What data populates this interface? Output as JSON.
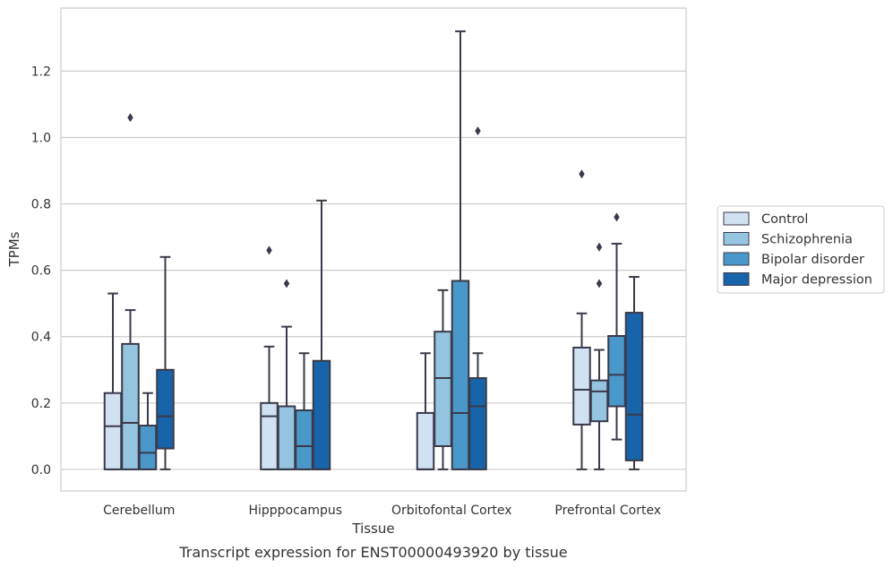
{
  "caption": "Transcript expression for ENST00000493920 by tissue",
  "chart_data": {
    "type": "box",
    "xlabel": "Tissue",
    "ylabel": "TPMs",
    "ylim": [
      -0.065,
      1.39
    ],
    "yticks": [
      0.0,
      0.2,
      0.4,
      0.6,
      0.8,
      1.0,
      1.2
    ],
    "ytick_labels": [
      "0.0",
      "0.2",
      "0.4",
      "0.6",
      "0.8",
      "1.0",
      "1.2"
    ],
    "grid": "horizontal",
    "legend_position": "right",
    "categories": [
      "Cerebellum",
      "Hipppocampus",
      "Orbitofontal Cortex",
      "Prefrontal Cortex"
    ],
    "series": [
      {
        "name": "Control",
        "color": "#d0e1f2",
        "boxes": [
          {
            "whislo": 0.0,
            "q1": 0.0,
            "med": 0.13,
            "q3": 0.23,
            "whishi": 0.53,
            "fliers": []
          },
          {
            "whislo": 0.0,
            "q1": 0.0,
            "med": 0.16,
            "q3": 0.2,
            "whishi": 0.37,
            "fliers": [
              0.66
            ]
          },
          {
            "whislo": 0.0,
            "q1": 0.0,
            "med": 0.0,
            "q3": 0.17,
            "whishi": 0.35,
            "fliers": []
          },
          {
            "whislo": 0.0,
            "q1": 0.135,
            "med": 0.24,
            "q3": 0.367,
            "whishi": 0.47,
            "fliers": [
              0.89
            ]
          }
        ]
      },
      {
        "name": "Schizophrenia",
        "color": "#94c4df",
        "boxes": [
          {
            "whislo": 0.0,
            "q1": 0.0,
            "med": 0.14,
            "q3": 0.378,
            "whishi": 0.48,
            "fliers": [
              1.06
            ]
          },
          {
            "whislo": 0.0,
            "q1": 0.0,
            "med": 0.0,
            "q3": 0.19,
            "whishi": 0.43,
            "fliers": [
              0.56
            ]
          },
          {
            "whislo": 0.0,
            "q1": 0.07,
            "med": 0.275,
            "q3": 0.415,
            "whishi": 0.54,
            "fliers": []
          },
          {
            "whislo": 0.0,
            "q1": 0.145,
            "med": 0.235,
            "q3": 0.268,
            "whishi": 0.36,
            "fliers": [
              0.56,
              0.67
            ]
          }
        ]
      },
      {
        "name": "Bipolar disorder",
        "color": "#4a98c9",
        "boxes": [
          {
            "whislo": 0.0,
            "q1": 0.0,
            "med": 0.05,
            "q3": 0.132,
            "whishi": 0.23,
            "fliers": []
          },
          {
            "whislo": 0.0,
            "q1": 0.0,
            "med": 0.07,
            "q3": 0.178,
            "whishi": 0.35,
            "fliers": []
          },
          {
            "whislo": 0.0,
            "q1": 0.0,
            "med": 0.17,
            "q3": 0.568,
            "whishi": 1.32,
            "fliers": []
          },
          {
            "whislo": 0.09,
            "q1": 0.19,
            "med": 0.285,
            "q3": 0.402,
            "whishi": 0.68,
            "fliers": [
              0.76
            ]
          }
        ]
      },
      {
        "name": "Major depression",
        "color": "#1764ab",
        "boxes": [
          {
            "whislo": 0.0,
            "q1": 0.063,
            "med": 0.16,
            "q3": 0.3,
            "whishi": 0.64,
            "fliers": []
          },
          {
            "whislo": 0.0,
            "q1": 0.0,
            "med": 0.0,
            "q3": 0.327,
            "whishi": 0.81,
            "fliers": []
          },
          {
            "whislo": 0.0,
            "q1": 0.0,
            "med": 0.19,
            "q3": 0.275,
            "whishi": 0.35,
            "fliers": [
              1.02
            ]
          },
          {
            "whislo": 0.0,
            "q1": 0.027,
            "med": 0.165,
            "q3": 0.472,
            "whishi": 0.58,
            "fliers": []
          }
        ]
      }
    ]
  }
}
